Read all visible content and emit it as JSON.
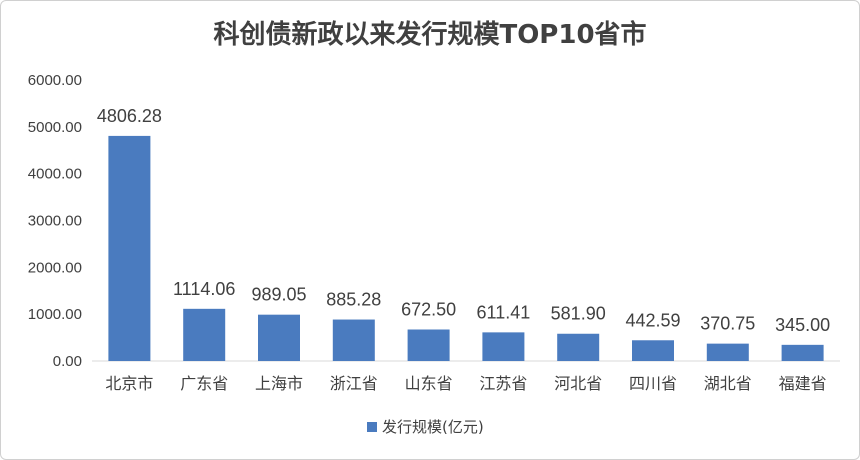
{
  "chart_data": {
    "type": "bar",
    "title": "科创债新政以来发行规模TOP10省市",
    "categories": [
      "北京市",
      "广东省",
      "上海市",
      "浙江省",
      "山东省",
      "江苏省",
      "河北省",
      "四川省",
      "湖北省",
      "福建省"
    ],
    "series": [
      {
        "name": "发行规模(亿元)",
        "values": [
          4806.28,
          1114.06,
          989.05,
          885.28,
          672.5,
          611.41,
          581.9,
          442.59,
          370.75,
          345.0
        ],
        "labels": [
          "4806.28",
          "1114.06",
          "989.05",
          "885.28",
          "672.50",
          "611.41",
          "581.90",
          "442.59",
          "370.75",
          "345.00"
        ]
      }
    ],
    "ylim": [
      0,
      6000
    ],
    "yticks": [
      "0.00",
      "1000.00",
      "2000.00",
      "3000.00",
      "4000.00",
      "5000.00",
      "6000.00"
    ],
    "grid": false,
    "legend": "bottom",
    "colors": {
      "bar": "#4a7bbf",
      "axis": "#d9d9d9",
      "text": "#404040"
    }
  }
}
